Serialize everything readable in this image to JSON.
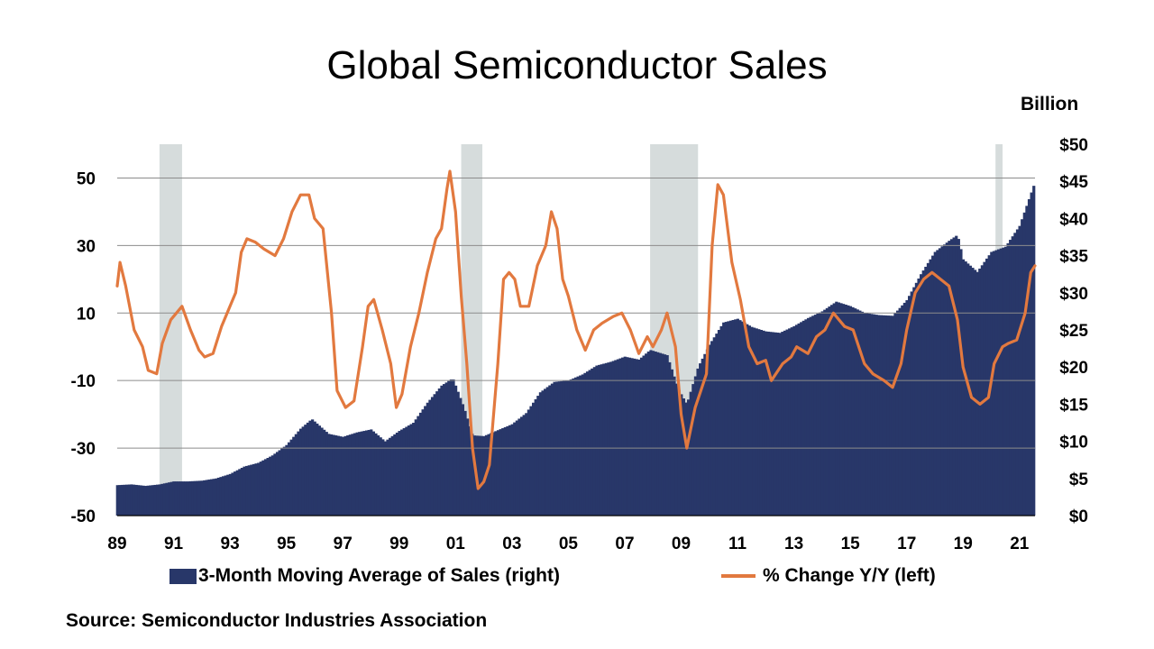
{
  "title": "Global Semiconductor Sales",
  "unit_label": "Billion",
  "source": "Source: Semiconductor Industries Association",
  "legend": {
    "bars": "3-Month Moving Average of Sales (right)",
    "line": "% Change Y/Y (left)"
  },
  "colors": {
    "bars": "#283769",
    "line": "#e2793f",
    "recession": "#d6dcdc",
    "grid": "#8c8c8c"
  },
  "chart_data": {
    "type": "bar+line",
    "x_tick_labels": [
      "89",
      "91",
      "93",
      "95",
      "97",
      "99",
      "01",
      "03",
      "05",
      "07",
      "09",
      "11",
      "13",
      "15",
      "17",
      "19",
      "21"
    ],
    "x_range": [
      1989.0,
      2021.55
    ],
    "left_axis": {
      "tick_labels": [
        "50",
        "30",
        "10",
        "-10",
        "-30",
        "-50"
      ],
      "ticks": [
        50,
        30,
        10,
        -10,
        -30,
        -50
      ],
      "range": [
        -50,
        60
      ]
    },
    "right_axis": {
      "tick_labels": [
        "$50",
        "$45",
        "$40",
        "$35",
        "$30",
        "$25",
        "$20",
        "$15",
        "$10",
        "$5",
        "$0"
      ],
      "ticks": [
        50,
        45,
        40,
        35,
        30,
        25,
        20,
        15,
        10,
        5,
        0
      ],
      "range": [
        0,
        50
      ]
    },
    "recessions": [
      [
        1990.5,
        1991.3
      ],
      [
        2001.2,
        2001.95
      ],
      [
        2007.9,
        2009.6
      ],
      [
        2020.15,
        2020.4
      ]
    ],
    "grid": "horizontal, left axis",
    "series": [
      {
        "name": "3-Month Moving Average of Sales (right)",
        "type": "bar",
        "axis": "right",
        "points": [
          [
            1989.0,
            4.1
          ],
          [
            1989.5,
            4.2
          ],
          [
            1990.0,
            4.0
          ],
          [
            1990.5,
            4.2
          ],
          [
            1991.0,
            4.6
          ],
          [
            1991.5,
            4.6
          ],
          [
            1992.0,
            4.7
          ],
          [
            1992.5,
            5.0
          ],
          [
            1993.0,
            5.6
          ],
          [
            1993.5,
            6.6
          ],
          [
            1994.0,
            7.1
          ],
          [
            1994.5,
            8.1
          ],
          [
            1995.0,
            9.5
          ],
          [
            1995.5,
            11.7
          ],
          [
            1995.9,
            13.0
          ],
          [
            1996.5,
            11.0
          ],
          [
            1997.0,
            10.6
          ],
          [
            1997.5,
            11.2
          ],
          [
            1998.0,
            11.6
          ],
          [
            1998.5,
            10.0
          ],
          [
            1999.0,
            11.4
          ],
          [
            1999.5,
            12.5
          ],
          [
            2000.0,
            15.2
          ],
          [
            2000.5,
            17.5
          ],
          [
            2000.9,
            18.5
          ],
          [
            2001.3,
            14.5
          ],
          [
            2001.6,
            10.8
          ],
          [
            2002.0,
            10.7
          ],
          [
            2002.5,
            11.5
          ],
          [
            2003.0,
            12.3
          ],
          [
            2003.5,
            13.8
          ],
          [
            2004.0,
            16.6
          ],
          [
            2004.5,
            18.0
          ],
          [
            2005.0,
            18.2
          ],
          [
            2005.5,
            19.0
          ],
          [
            2006.0,
            20.2
          ],
          [
            2006.5,
            20.7
          ],
          [
            2007.0,
            21.4
          ],
          [
            2007.5,
            21.0
          ],
          [
            2007.9,
            22.3
          ],
          [
            2008.5,
            21.6
          ],
          [
            2008.9,
            17.0
          ],
          [
            2009.2,
            15.0
          ],
          [
            2009.6,
            20.0
          ],
          [
            2010.0,
            23.0
          ],
          [
            2010.5,
            26.0
          ],
          [
            2011.0,
            26.5
          ],
          [
            2011.5,
            25.4
          ],
          [
            2012.0,
            24.8
          ],
          [
            2012.5,
            24.6
          ],
          [
            2013.0,
            25.5
          ],
          [
            2013.5,
            26.6
          ],
          [
            2014.0,
            27.5
          ],
          [
            2014.5,
            28.8
          ],
          [
            2015.0,
            28.2
          ],
          [
            2015.5,
            27.3
          ],
          [
            2016.0,
            27.0
          ],
          [
            2016.5,
            26.9
          ],
          [
            2017.0,
            29.0
          ],
          [
            2017.5,
            32.5
          ],
          [
            2018.0,
            35.5
          ],
          [
            2018.5,
            37.0
          ],
          [
            2018.8,
            37.8
          ],
          [
            2019.0,
            34.5
          ],
          [
            2019.5,
            32.8
          ],
          [
            2020.0,
            35.5
          ],
          [
            2020.5,
            36.2
          ],
          [
            2021.0,
            39.0
          ],
          [
            2021.5,
            44.4
          ]
        ]
      },
      {
        "name": "% Change Y/Y (left)",
        "type": "line",
        "axis": "left",
        "points": [
          [
            1989.0,
            18
          ],
          [
            1989.1,
            25
          ],
          [
            1989.3,
            18
          ],
          [
            1989.6,
            5
          ],
          [
            1989.9,
            0
          ],
          [
            1990.1,
            -7
          ],
          [
            1990.4,
            -8
          ],
          [
            1990.6,
            1
          ],
          [
            1990.9,
            8
          ],
          [
            1991.3,
            12
          ],
          [
            1991.6,
            5
          ],
          [
            1991.9,
            -1
          ],
          [
            1992.1,
            -3
          ],
          [
            1992.4,
            -2
          ],
          [
            1992.7,
            6
          ],
          [
            1993.0,
            12
          ],
          [
            1993.2,
            16
          ],
          [
            1993.4,
            28
          ],
          [
            1993.6,
            32
          ],
          [
            1993.9,
            31
          ],
          [
            1994.2,
            29
          ],
          [
            1994.6,
            27
          ],
          [
            1994.9,
            32
          ],
          [
            1995.2,
            40
          ],
          [
            1995.5,
            45
          ],
          [
            1995.8,
            45
          ],
          [
            1996.0,
            38
          ],
          [
            1996.3,
            35
          ],
          [
            1996.6,
            10
          ],
          [
            1996.8,
            -13
          ],
          [
            1997.1,
            -18
          ],
          [
            1997.4,
            -16
          ],
          [
            1997.7,
            0
          ],
          [
            1997.9,
            12
          ],
          [
            1998.1,
            14
          ],
          [
            1998.4,
            5
          ],
          [
            1998.7,
            -5
          ],
          [
            1998.9,
            -18
          ],
          [
            1999.1,
            -14
          ],
          [
            1999.4,
            0
          ],
          [
            1999.7,
            10
          ],
          [
            2000.0,
            22
          ],
          [
            2000.3,
            32
          ],
          [
            2000.5,
            35
          ],
          [
            2000.7,
            47
          ],
          [
            2000.8,
            52
          ],
          [
            2001.0,
            40
          ],
          [
            2001.2,
            15
          ],
          [
            2001.4,
            -5
          ],
          [
            2001.6,
            -30
          ],
          [
            2001.8,
            -42
          ],
          [
            2002.0,
            -40
          ],
          [
            2002.2,
            -35
          ],
          [
            2002.5,
            -5
          ],
          [
            2002.7,
            20
          ],
          [
            2002.9,
            22
          ],
          [
            2003.1,
            20
          ],
          [
            2003.3,
            12
          ],
          [
            2003.6,
            12
          ],
          [
            2003.9,
            24
          ],
          [
            2004.2,
            30
          ],
          [
            2004.4,
            40
          ],
          [
            2004.6,
            35
          ],
          [
            2004.8,
            20
          ],
          [
            2005.0,
            15
          ],
          [
            2005.3,
            5
          ],
          [
            2005.6,
            -1
          ],
          [
            2005.9,
            5
          ],
          [
            2006.2,
            7
          ],
          [
            2006.6,
            9
          ],
          [
            2006.9,
            10
          ],
          [
            2007.2,
            5
          ],
          [
            2007.5,
            -2
          ],
          [
            2007.8,
            3
          ],
          [
            2008.0,
            0
          ],
          [
            2008.3,
            5
          ],
          [
            2008.5,
            10
          ],
          [
            2008.8,
            0
          ],
          [
            2009.0,
            -20
          ],
          [
            2009.2,
            -30
          ],
          [
            2009.5,
            -18
          ],
          [
            2009.9,
            -8
          ],
          [
            2010.1,
            30
          ],
          [
            2010.3,
            48
          ],
          [
            2010.5,
            45
          ],
          [
            2010.8,
            25
          ],
          [
            2011.1,
            14
          ],
          [
            2011.4,
            0
          ],
          [
            2011.7,
            -5
          ],
          [
            2012.0,
            -4
          ],
          [
            2012.2,
            -10
          ],
          [
            2012.6,
            -5
          ],
          [
            2012.9,
            -3
          ],
          [
            2013.1,
            0
          ],
          [
            2013.5,
            -2
          ],
          [
            2013.8,
            3
          ],
          [
            2014.1,
            5
          ],
          [
            2014.4,
            10
          ],
          [
            2014.8,
            6
          ],
          [
            2015.1,
            5
          ],
          [
            2015.5,
            -5
          ],
          [
            2015.8,
            -8
          ],
          [
            2016.2,
            -10
          ],
          [
            2016.5,
            -12
          ],
          [
            2016.8,
            -5
          ],
          [
            2017.0,
            5
          ],
          [
            2017.3,
            16
          ],
          [
            2017.6,
            20
          ],
          [
            2017.9,
            22
          ],
          [
            2018.2,
            20
          ],
          [
            2018.5,
            18
          ],
          [
            2018.8,
            8
          ],
          [
            2019.0,
            -6
          ],
          [
            2019.3,
            -15
          ],
          [
            2019.6,
            -17
          ],
          [
            2019.9,
            -15
          ],
          [
            2020.1,
            -5
          ],
          [
            2020.4,
            0
          ],
          [
            2020.6,
            1
          ],
          [
            2020.9,
            2
          ],
          [
            2021.2,
            10
          ],
          [
            2021.4,
            22
          ],
          [
            2021.55,
            24
          ]
        ]
      }
    ]
  }
}
